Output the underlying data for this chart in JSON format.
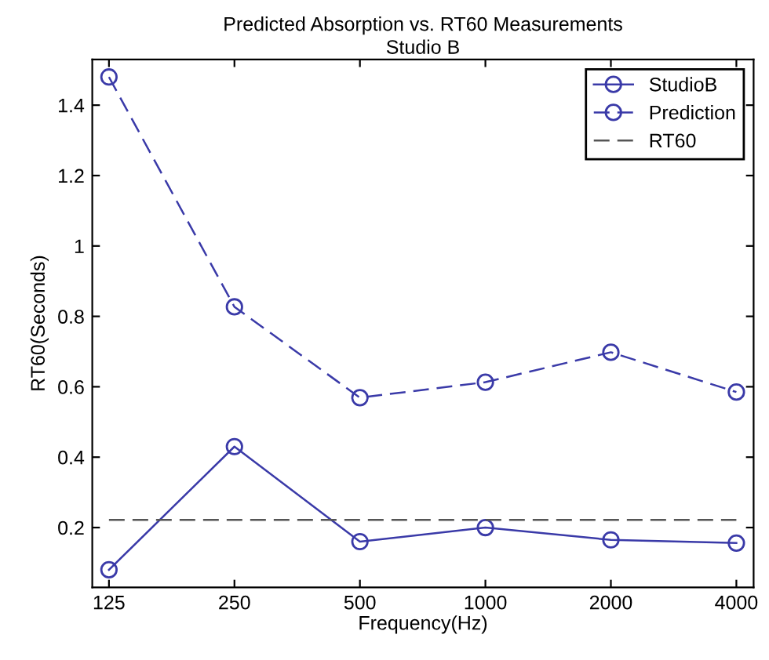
{
  "chart_data": {
    "type": "line",
    "title": "Predicted Absorption vs. RT60 Measurements",
    "subtitle": "Studio B",
    "xlabel": "Frequency(Hz)",
    "ylabel": "RT60(Seconds)",
    "x": [
      125,
      250,
      500,
      1000,
      2000,
      4000
    ],
    "series": [
      {
        "name": "StudioB",
        "color": "#3a3aa8",
        "values": [
          0.08,
          0.43,
          0.16,
          0.2,
          0.165,
          0.156
        ],
        "marker": "circle",
        "line_style": "solid"
      },
      {
        "name": "Prediction",
        "color": "#3a3aa8",
        "values": [
          1.48,
          0.827,
          0.569,
          0.613,
          0.698,
          0.585
        ],
        "marker": "circle",
        "line_style": "dashed"
      },
      {
        "name": "RT60",
        "color": "#555555",
        "x": [
          125,
          4000
        ],
        "values": [
          0.222,
          0.222
        ],
        "marker": "none",
        "line_style": "dashed"
      }
    ],
    "log": "x",
    "xlim": [
      114,
      4400
    ],
    "xticks": [
      125,
      250,
      500,
      1000,
      2000,
      4000
    ],
    "ylim": [
      0.03,
      1.53
    ],
    "yticks": [
      0.2,
      0.4,
      0.6,
      {
        "value": 0.8,
        "label": "0.8"
      },
      1,
      1.2,
      1.4
    ],
    "grid": false,
    "legend": "top right"
  }
}
